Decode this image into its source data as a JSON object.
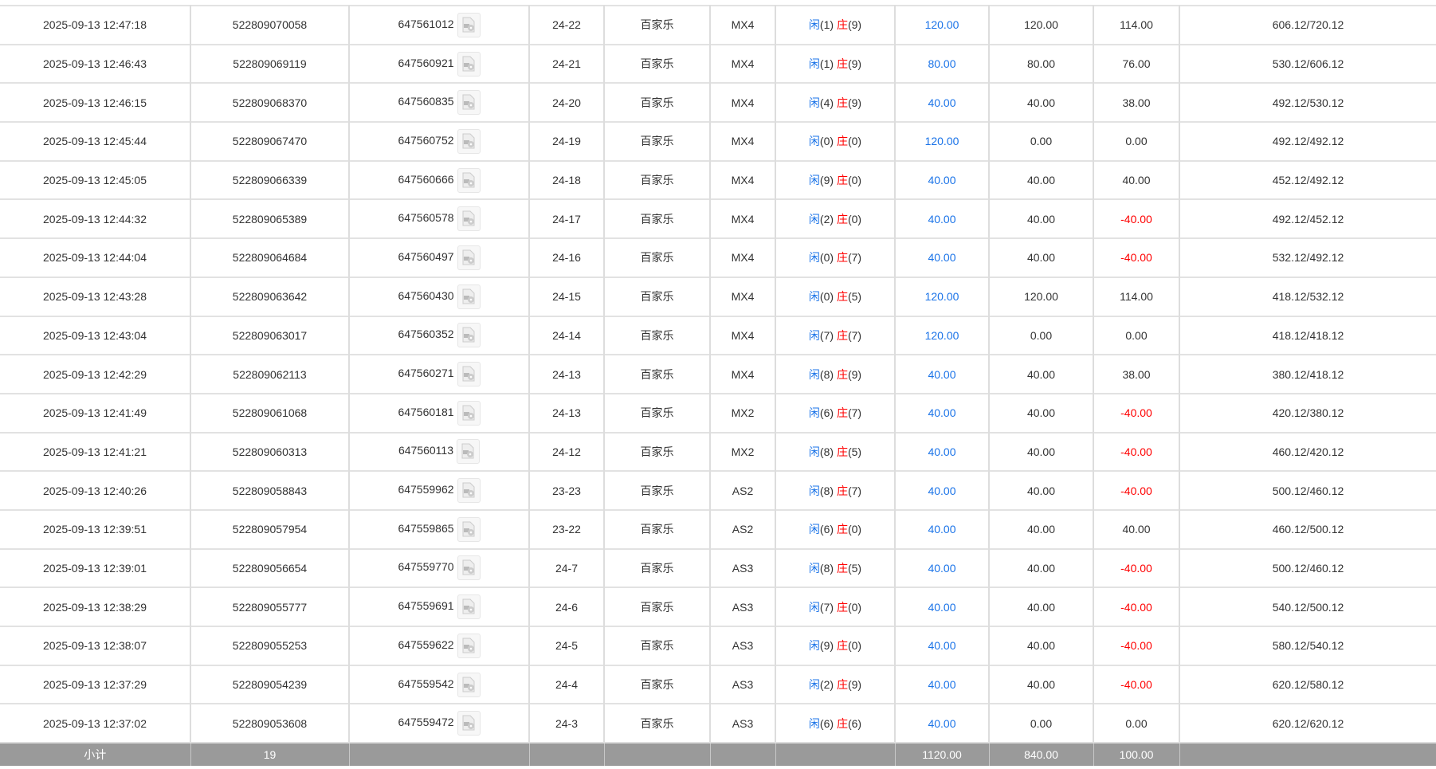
{
  "colors": {
    "player": "#1a73e8",
    "banker": "#ff0000",
    "bet": "#1a73e8",
    "loss": "#ff0000",
    "subtotal_bg": "#9a9a9a"
  },
  "rows": [
    {
      "time": "2025-09-13 12:47:18",
      "bet_id": "522809070058",
      "round_id": "647561012",
      "shoe": "24-22",
      "game": "百家乐",
      "table": "MX4",
      "p": "闲",
      "pv": "(1)",
      "b": "庄",
      "bv": "(9)",
      "bet": "120.00",
      "valid": "120.00",
      "win": "114.00",
      "neg": false,
      "balance": "606.12/720.12"
    },
    {
      "time": "2025-09-13 12:46:43",
      "bet_id": "522809069119",
      "round_id": "647560921",
      "shoe": "24-21",
      "game": "百家乐",
      "table": "MX4",
      "p": "闲",
      "pv": "(1)",
      "b": "庄",
      "bv": "(9)",
      "bet": "80.00",
      "valid": "80.00",
      "win": "76.00",
      "neg": false,
      "balance": "530.12/606.12"
    },
    {
      "time": "2025-09-13 12:46:15",
      "bet_id": "522809068370",
      "round_id": "647560835",
      "shoe": "24-20",
      "game": "百家乐",
      "table": "MX4",
      "p": "闲",
      "pv": "(4)",
      "b": "庄",
      "bv": "(9)",
      "bet": "40.00",
      "valid": "40.00",
      "win": "38.00",
      "neg": false,
      "balance": "492.12/530.12"
    },
    {
      "time": "2025-09-13 12:45:44",
      "bet_id": "522809067470",
      "round_id": "647560752",
      "shoe": "24-19",
      "game": "百家乐",
      "table": "MX4",
      "p": "闲",
      "pv": "(0)",
      "b": "庄",
      "bv": "(0)",
      "bet": "120.00",
      "valid": "0.00",
      "win": "0.00",
      "neg": false,
      "balance": "492.12/492.12"
    },
    {
      "time": "2025-09-13 12:45:05",
      "bet_id": "522809066339",
      "round_id": "647560666",
      "shoe": "24-18",
      "game": "百家乐",
      "table": "MX4",
      "p": "闲",
      "pv": "(9)",
      "b": "庄",
      "bv": "(0)",
      "bet": "40.00",
      "valid": "40.00",
      "win": "40.00",
      "neg": false,
      "balance": "452.12/492.12"
    },
    {
      "time": "2025-09-13 12:44:32",
      "bet_id": "522809065389",
      "round_id": "647560578",
      "shoe": "24-17",
      "game": "百家乐",
      "table": "MX4",
      "p": "闲",
      "pv": "(2)",
      "b": "庄",
      "bv": "(0)",
      "bet": "40.00",
      "valid": "40.00",
      "win": "-40.00",
      "neg": true,
      "balance": "492.12/452.12"
    },
    {
      "time": "2025-09-13 12:44:04",
      "bet_id": "522809064684",
      "round_id": "647560497",
      "shoe": "24-16",
      "game": "百家乐",
      "table": "MX4",
      "p": "闲",
      "pv": "(0)",
      "b": "庄",
      "bv": "(7)",
      "bet": "40.00",
      "valid": "40.00",
      "win": "-40.00",
      "neg": true,
      "balance": "532.12/492.12"
    },
    {
      "time": "2025-09-13 12:43:28",
      "bet_id": "522809063642",
      "round_id": "647560430",
      "shoe": "24-15",
      "game": "百家乐",
      "table": "MX4",
      "p": "闲",
      "pv": "(0)",
      "b": "庄",
      "bv": "(5)",
      "bet": "120.00",
      "valid": "120.00",
      "win": "114.00",
      "neg": false,
      "balance": "418.12/532.12"
    },
    {
      "time": "2025-09-13 12:43:04",
      "bet_id": "522809063017",
      "round_id": "647560352",
      "shoe": "24-14",
      "game": "百家乐",
      "table": "MX4",
      "p": "闲",
      "pv": "(7)",
      "b": "庄",
      "bv": "(7)",
      "bet": "120.00",
      "valid": "0.00",
      "win": "0.00",
      "neg": false,
      "balance": "418.12/418.12"
    },
    {
      "time": "2025-09-13 12:42:29",
      "bet_id": "522809062113",
      "round_id": "647560271",
      "shoe": "24-13",
      "game": "百家乐",
      "table": "MX4",
      "p": "闲",
      "pv": "(8)",
      "b": "庄",
      "bv": "(9)",
      "bet": "40.00",
      "valid": "40.00",
      "win": "38.00",
      "neg": false,
      "balance": "380.12/418.12"
    },
    {
      "time": "2025-09-13 12:41:49",
      "bet_id": "522809061068",
      "round_id": "647560181",
      "shoe": "24-13",
      "game": "百家乐",
      "table": "MX2",
      "p": "闲",
      "pv": "(6)",
      "b": "庄",
      "bv": "(7)",
      "bet": "40.00",
      "valid": "40.00",
      "win": "-40.00",
      "neg": true,
      "balance": "420.12/380.12"
    },
    {
      "time": "2025-09-13 12:41:21",
      "bet_id": "522809060313",
      "round_id": "647560113",
      "shoe": "24-12",
      "game": "百家乐",
      "table": "MX2",
      "p": "闲",
      "pv": "(8)",
      "b": "庄",
      "bv": "(5)",
      "bet": "40.00",
      "valid": "40.00",
      "win": "-40.00",
      "neg": true,
      "balance": "460.12/420.12"
    },
    {
      "time": "2025-09-13 12:40:26",
      "bet_id": "522809058843",
      "round_id": "647559962",
      "shoe": "23-23",
      "game": "百家乐",
      "table": "AS2",
      "p": "闲",
      "pv": "(8)",
      "b": "庄",
      "bv": "(7)",
      "bet": "40.00",
      "valid": "40.00",
      "win": "-40.00",
      "neg": true,
      "balance": "500.12/460.12"
    },
    {
      "time": "2025-09-13 12:39:51",
      "bet_id": "522809057954",
      "round_id": "647559865",
      "shoe": "23-22",
      "game": "百家乐",
      "table": "AS2",
      "p": "闲",
      "pv": "(6)",
      "b": "庄",
      "bv": "(0)",
      "bet": "40.00",
      "valid": "40.00",
      "win": "40.00",
      "neg": false,
      "balance": "460.12/500.12"
    },
    {
      "time": "2025-09-13 12:39:01",
      "bet_id": "522809056654",
      "round_id": "647559770",
      "shoe": "24-7",
      "game": "百家乐",
      "table": "AS3",
      "p": "闲",
      "pv": "(8)",
      "b": "庄",
      "bv": "(5)",
      "bet": "40.00",
      "valid": "40.00",
      "win": "-40.00",
      "neg": true,
      "balance": "500.12/460.12"
    },
    {
      "time": "2025-09-13 12:38:29",
      "bet_id": "522809055777",
      "round_id": "647559691",
      "shoe": "24-6",
      "game": "百家乐",
      "table": "AS3",
      "p": "闲",
      "pv": "(7)",
      "b": "庄",
      "bv": "(0)",
      "bet": "40.00",
      "valid": "40.00",
      "win": "-40.00",
      "neg": true,
      "balance": "540.12/500.12"
    },
    {
      "time": "2025-09-13 12:38:07",
      "bet_id": "522809055253",
      "round_id": "647559622",
      "shoe": "24-5",
      "game": "百家乐",
      "table": "AS3",
      "p": "闲",
      "pv": "(9)",
      "b": "庄",
      "bv": "(0)",
      "bet": "40.00",
      "valid": "40.00",
      "win": "-40.00",
      "neg": true,
      "balance": "580.12/540.12"
    },
    {
      "time": "2025-09-13 12:37:29",
      "bet_id": "522809054239",
      "round_id": "647559542",
      "shoe": "24-4",
      "game": "百家乐",
      "table": "AS3",
      "p": "闲",
      "pv": "(2)",
      "b": "庄",
      "bv": "(9)",
      "bet": "40.00",
      "valid": "40.00",
      "win": "-40.00",
      "neg": true,
      "balance": "620.12/580.12"
    },
    {
      "time": "2025-09-13 12:37:02",
      "bet_id": "522809053608",
      "round_id": "647559472",
      "shoe": "24-3",
      "game": "百家乐",
      "table": "AS3",
      "p": "闲",
      "pv": "(6)",
      "b": "庄",
      "bv": "(6)",
      "bet": "40.00",
      "valid": "0.00",
      "win": "0.00",
      "neg": false,
      "balance": "620.12/620.12"
    }
  ],
  "subtotal": {
    "label": "小计",
    "count": "19",
    "bet": "1120.00",
    "valid": "840.00",
    "win": "100.00"
  }
}
